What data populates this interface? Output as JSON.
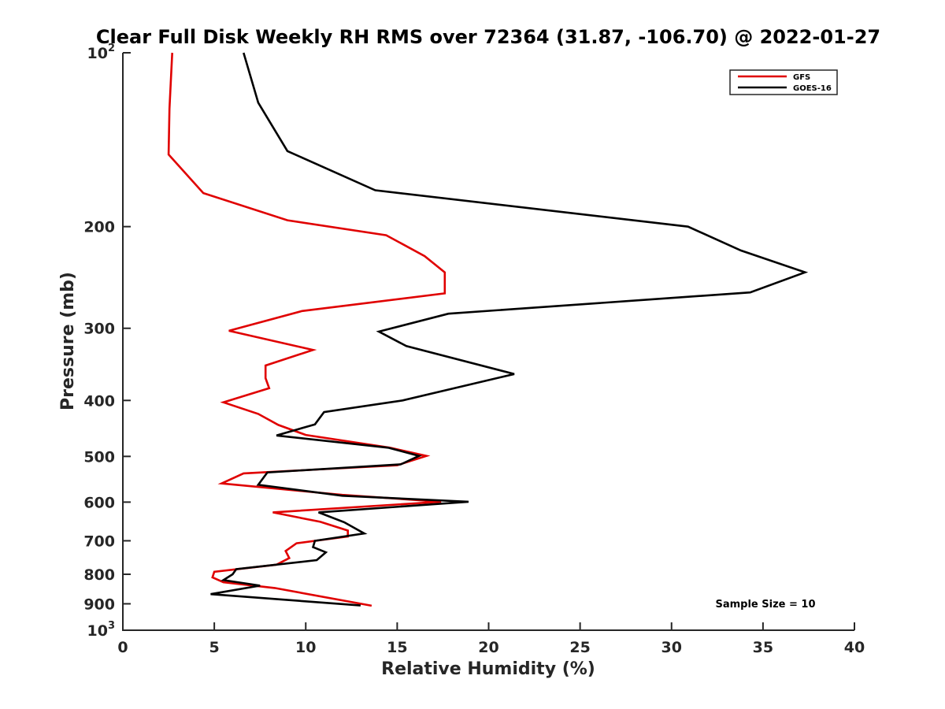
{
  "chart_data": {
    "type": "line",
    "title": "Clear Full Disk Weekly RH RMS over 72364 (31.87, -106.70) @ 2022-01-27",
    "xlabel": "Relative Humidity (%)",
    "ylabel": "Pressure (mb)",
    "xlim": [
      0,
      40
    ],
    "ylim": [
      100,
      1000
    ],
    "y_scale": "log",
    "y_reversed": true,
    "x_ticks": [
      0,
      5,
      10,
      15,
      20,
      25,
      30,
      35,
      40
    ],
    "x_tick_labels": [
      "0",
      "5",
      "10",
      "15",
      "20",
      "25",
      "30",
      "35",
      "40"
    ],
    "y_ticks": [
      100,
      200,
      300,
      400,
      500,
      600,
      700,
      800,
      900,
      1000
    ],
    "y_tick_labels": [
      {
        "base": "10",
        "exp": "2"
      },
      {
        "base": "200",
        "exp": ""
      },
      {
        "base": "300",
        "exp": ""
      },
      {
        "base": "400",
        "exp": ""
      },
      {
        "base": "500",
        "exp": ""
      },
      {
        "base": "600",
        "exp": ""
      },
      {
        "base": "700",
        "exp": ""
      },
      {
        "base": "800",
        "exp": ""
      },
      {
        "base": "900",
        "exp": ""
      },
      {
        "base": "10",
        "exp": "3"
      }
    ],
    "grid": false,
    "legend_position": "top-right",
    "annotation": "Sample Size = 10",
    "series": [
      {
        "name": "GFS",
        "color": "#e00000",
        "points": [
          [
            2.7,
            100
          ],
          [
            2.55,
            125
          ],
          [
            2.5,
            150
          ],
          [
            4.4,
            175
          ],
          [
            9.0,
            195
          ],
          [
            14.4,
            207
          ],
          [
            16.5,
            225
          ],
          [
            17.6,
            240
          ],
          [
            17.6,
            261
          ],
          [
            9.8,
            280
          ],
          [
            5.8,
            303
          ],
          [
            10.4,
            327
          ],
          [
            7.8,
            348
          ],
          [
            7.8,
            366
          ],
          [
            8.0,
            381
          ],
          [
            5.5,
            403
          ],
          [
            7.4,
            422
          ],
          [
            8.5,
            441
          ],
          [
            10.0,
            459
          ],
          [
            14.6,
            483
          ],
          [
            16.6,
            499
          ],
          [
            15.0,
            518
          ],
          [
            6.6,
            535
          ],
          [
            5.4,
            557
          ],
          [
            12.0,
            583
          ],
          [
            17.4,
            599
          ],
          [
            8.2,
            625
          ],
          [
            10.8,
            649
          ],
          [
            12.3,
            672
          ],
          [
            12.3,
            688
          ],
          [
            9.5,
            707
          ],
          [
            8.9,
            729
          ],
          [
            9.1,
            750
          ],
          [
            8.4,
            770
          ],
          [
            5.0,
            792
          ],
          [
            4.9,
            810
          ],
          [
            5.5,
            826
          ],
          [
            8.3,
            845
          ],
          [
            13.6,
            907
          ]
        ]
      },
      {
        "name": "GOES-16",
        "color": "#000000",
        "points": [
          [
            6.6,
            100
          ],
          [
            7.4,
            122
          ],
          [
            9.0,
            148
          ],
          [
            13.8,
            173
          ],
          [
            30.9,
            200
          ],
          [
            33.8,
            220
          ],
          [
            37.3,
            240
          ],
          [
            34.3,
            260
          ],
          [
            17.8,
            283
          ],
          [
            14.0,
            304
          ],
          [
            15.5,
            322
          ],
          [
            21.4,
            360
          ],
          [
            15.3,
            400
          ],
          [
            11.0,
            419
          ],
          [
            10.5,
            440
          ],
          [
            8.4,
            460
          ],
          [
            14.5,
            483
          ],
          [
            16.2,
            499
          ],
          [
            15.2,
            516
          ],
          [
            7.9,
            533
          ],
          [
            7.4,
            560
          ],
          [
            12.0,
            585
          ],
          [
            18.9,
            599
          ],
          [
            10.7,
            625
          ],
          [
            12.1,
            650
          ],
          [
            13.2,
            680
          ],
          [
            10.5,
            700
          ],
          [
            10.4,
            718
          ],
          [
            11.1,
            733
          ],
          [
            10.6,
            756
          ],
          [
            6.2,
            784
          ],
          [
            6.0,
            800
          ],
          [
            5.5,
            819
          ],
          [
            7.5,
            837
          ],
          [
            4.8,
            866
          ],
          [
            13.0,
            906
          ]
        ]
      }
    ]
  }
}
